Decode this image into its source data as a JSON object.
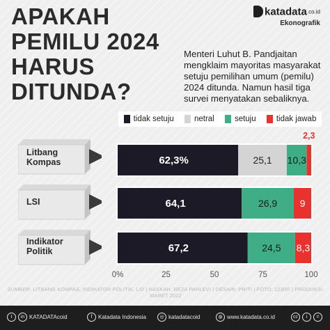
{
  "header": {
    "title_lines": [
      "APAKAH",
      "PEMILU 2024",
      "HARUS",
      "DITUNDA?"
    ],
    "brand": "katadata",
    "brand_suffix": ".co.id",
    "brand_sub": "Ekonografik"
  },
  "description": "Menteri  Luhut B. Pandjaitan mengklaim mayoritas masyarakat setuju pemilihan umum (pemilu) 2024 ditunda. Namun hasil tiga survei menyatakan sebaliknya.",
  "colors": {
    "tidak_setuju": "#1c1a26",
    "netral": "#d4d4d4",
    "setuju": "#3fae87",
    "tidak_jawab": "#e8322d",
    "title": "#2b2b2b",
    "footer": "#1e1e1e"
  },
  "chart_data": {
    "type": "bar",
    "orientation": "horizontal",
    "stacked": true,
    "categories": [
      "Litbang Kompas",
      "LSI",
      "Indikator Politik"
    ],
    "category_lines": [
      [
        "Litbang",
        "Kompas"
      ],
      [
        "LSI"
      ],
      [
        "Indikator",
        "Politik"
      ]
    ],
    "series": [
      {
        "name": "tidak setuju",
        "values": [
          62.3,
          64.1,
          67.2
        ],
        "labels": [
          "62,3%",
          "64,1",
          "67,2"
        ]
      },
      {
        "name": "netral",
        "values": [
          25.1,
          0,
          0
        ],
        "labels": [
          "25,1",
          "",
          ""
        ]
      },
      {
        "name": "setuju",
        "values": [
          10.3,
          26.9,
          24.5
        ],
        "labels": [
          "10,3",
          "26,9",
          "24,5"
        ]
      },
      {
        "name": "tidak jawab",
        "values": [
          2.3,
          9,
          8.3
        ],
        "labels": [
          "2,3",
          "9",
          "8,3"
        ]
      }
    ],
    "xlim": [
      0,
      100
    ],
    "x_ticks": [
      "0%",
      "25",
      "50",
      "75",
      "100"
    ],
    "grid": false,
    "legend": "top"
  },
  "footer": {
    "source": "SUMBER: LITBANG KOMPAS, INDIKATOR POLITIK, LSI  |  NASKAH: REZA PAHLEVI  |  DESAIN: PRITI  |  FOTO: 123RF  |  PRODUKSI: MARET 2022",
    "social": [
      {
        "icon": "twitter-icon",
        "text": "KATADATAcoid"
      },
      {
        "icon": "facebook-icon",
        "text": "Katadata Indonesia"
      },
      {
        "icon": "instagram-icon",
        "text": "katadatacoid"
      },
      {
        "icon": "globe-icon",
        "text": "www.katadata.co.id"
      }
    ]
  }
}
